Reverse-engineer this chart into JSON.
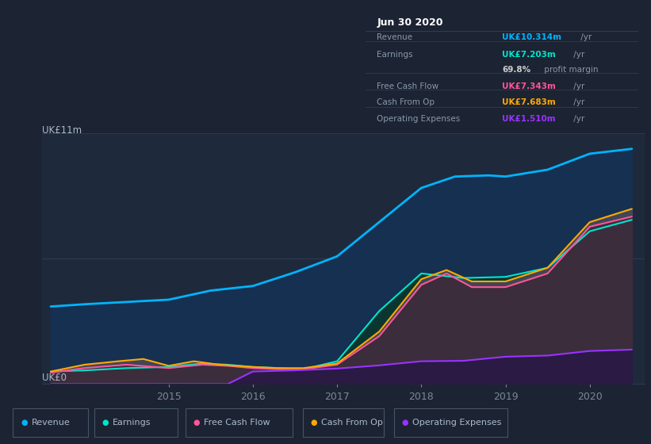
{
  "background_color": "#1c2333",
  "chart_bg": "#1e2a3c",
  "ylabel_top": "UK£11m",
  "ylabel_bottom": "UK£0",
  "x_ticks": [
    2015,
    2016,
    2017,
    2018,
    2019,
    2020
  ],
  "series": {
    "revenue": {
      "label": "Revenue",
      "color": "#00b4ff",
      "x": [
        2013.6,
        2014.0,
        2014.5,
        2015.0,
        2015.5,
        2016.0,
        2016.5,
        2017.0,
        2017.5,
        2018.0,
        2018.4,
        2018.8,
        2019.0,
        2019.5,
        2020.0,
        2020.5
      ],
      "y": [
        3.4,
        3.5,
        3.6,
        3.7,
        4.1,
        4.3,
        4.9,
        5.6,
        7.1,
        8.6,
        9.1,
        9.15,
        9.1,
        9.4,
        10.1,
        10.314
      ]
    },
    "earnings": {
      "label": "Earnings",
      "color": "#00e5cc",
      "x": [
        2013.6,
        2014.0,
        2014.5,
        2015.0,
        2015.4,
        2015.7,
        2016.0,
        2016.3,
        2016.6,
        2017.0,
        2017.5,
        2018.0,
        2018.5,
        2019.0,
        2019.5,
        2020.0,
        2020.5
      ],
      "y": [
        0.55,
        0.6,
        0.7,
        0.75,
        0.9,
        0.85,
        0.75,
        0.7,
        0.65,
        1.0,
        3.2,
        4.85,
        4.65,
        4.7,
        5.1,
        6.7,
        7.203
      ]
    },
    "free_cash_flow": {
      "label": "Free Cash Flow",
      "color": "#ff5599",
      "x": [
        2013.6,
        2014.0,
        2014.5,
        2015.0,
        2015.4,
        2015.7,
        2016.0,
        2016.3,
        2016.6,
        2017.0,
        2017.5,
        2018.0,
        2018.3,
        2018.6,
        2019.0,
        2019.5,
        2020.0,
        2020.5
      ],
      "y": [
        0.5,
        0.7,
        0.85,
        0.7,
        0.85,
        0.8,
        0.7,
        0.65,
        0.65,
        0.85,
        2.1,
        4.35,
        4.85,
        4.25,
        4.25,
        4.85,
        6.9,
        7.343
      ]
    },
    "cash_from_op": {
      "label": "Cash From Op",
      "color": "#ffaa00",
      "x": [
        2013.6,
        2014.0,
        2014.4,
        2014.7,
        2015.0,
        2015.3,
        2015.6,
        2016.0,
        2016.3,
        2016.6,
        2017.0,
        2017.5,
        2018.0,
        2018.3,
        2018.6,
        2019.0,
        2019.5,
        2020.0,
        2020.5
      ],
      "y": [
        0.55,
        0.85,
        1.0,
        1.1,
        0.8,
        1.0,
        0.85,
        0.75,
        0.7,
        0.7,
        0.9,
        2.3,
        4.6,
        5.0,
        4.5,
        4.5,
        5.1,
        7.1,
        7.683
      ]
    },
    "operating_expenses": {
      "label": "Operating Expenses",
      "color": "#9933ff",
      "x": [
        2013.6,
        2015.5,
        2015.7,
        2016.0,
        2016.5,
        2017.0,
        2017.5,
        2018.0,
        2018.5,
        2019.0,
        2019.5,
        2020.0,
        2020.5
      ],
      "y": [
        0.0,
        0.0,
        0.0,
        0.55,
        0.6,
        0.68,
        0.82,
        1.0,
        1.02,
        1.2,
        1.25,
        1.45,
        1.51
      ]
    }
  },
  "legend_items": [
    {
      "label": "Revenue",
      "color": "#00b4ff"
    },
    {
      "label": "Earnings",
      "color": "#00e5cc"
    },
    {
      "label": "Free Cash Flow",
      "color": "#ff5599"
    },
    {
      "label": "Cash From Op",
      "color": "#ffaa00"
    },
    {
      "label": "Operating Expenses",
      "color": "#9933ff"
    }
  ],
  "info_box": {
    "date": "Jun 30 2020",
    "rows": [
      {
        "label": "Revenue",
        "value": "UK£10.314m",
        "unit": " /yr",
        "value_color": "#00b4ff",
        "separator": true
      },
      {
        "label": "Earnings",
        "value": "UK£7.203m",
        "unit": " /yr",
        "value_color": "#00e5cc",
        "separator": false
      },
      {
        "label": "",
        "value": "69.8%",
        "unit": " profit margin",
        "value_color": "#cccccc",
        "separator": true
      },
      {
        "label": "Free Cash Flow",
        "value": "UK£7.343m",
        "unit": " /yr",
        "value_color": "#ff5599",
        "separator": true
      },
      {
        "label": "Cash From Op",
        "value": "UK£7.683m",
        "unit": " /yr",
        "value_color": "#ffaa00",
        "separator": true
      },
      {
        "label": "Operating Expenses",
        "value": "UK£1.510m",
        "unit": " /yr",
        "value_color": "#9933ff",
        "separator": false
      }
    ]
  },
  "ylim": [
    0,
    11
  ],
  "xlim": [
    2013.5,
    2020.65
  ],
  "grid_color": "#2c3a52",
  "tick_color": "#7a8899",
  "text_color": "#aabbcc",
  "label_color": "#8899aa"
}
